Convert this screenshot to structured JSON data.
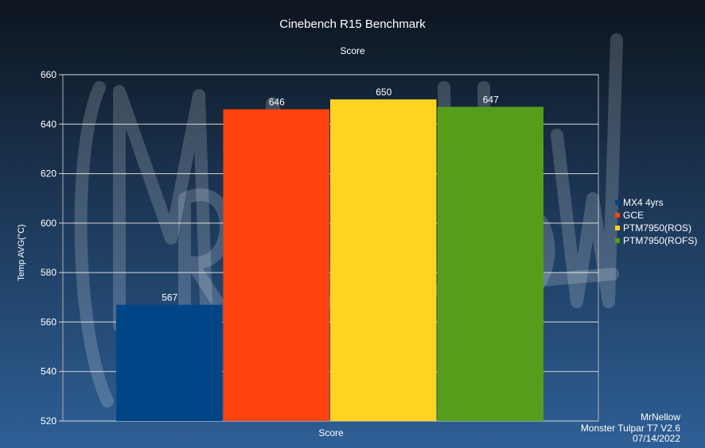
{
  "colors": {
    "background_top": "#0d1520",
    "background_bottom": "#2e5f96",
    "grid": "#d8d8d8",
    "text": "#ffffff",
    "watermark": "#ffffff"
  },
  "chart_data": {
    "type": "bar",
    "title": "Cinebench R15 Benchmark",
    "subtitle": "Score",
    "xlabel": "Score",
    "ylabel": "Temp AVG(°C)",
    "ylim": [
      520,
      660
    ],
    "yticks": [
      "520",
      "540",
      "560",
      "580",
      "600",
      "620",
      "640",
      "660"
    ],
    "grid": true,
    "legend_position": "right",
    "categories": [
      "Score"
    ],
    "series": [
      {
        "name": "MX4 4yrs",
        "values": [
          567
        ],
        "color": "#004586"
      },
      {
        "name": "GCE",
        "values": [
          646
        ],
        "color": "#ff420e"
      },
      {
        "name": "PTM7950(ROS)",
        "values": [
          650
        ],
        "color": "#ffd320"
      },
      {
        "name": "PTM7950(ROFS)",
        "values": [
          647
        ],
        "color": "#579d1c"
      }
    ],
    "data_labels": [
      "567",
      "646",
      "650",
      "647"
    ]
  },
  "footer": {
    "author": "MrNellow",
    "device": "Monster Tulpar T7 V2.6",
    "date": "07/14/2022"
  },
  "watermark": "MrNellow"
}
